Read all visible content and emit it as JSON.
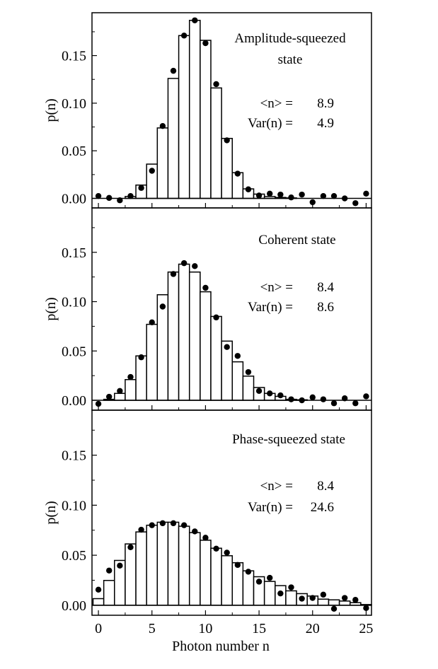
{
  "chart_data": {
    "type": "bar",
    "xlabel": "Photon number n",
    "ylabel": "p(n)",
    "xlim": [
      -0.6,
      25.5
    ],
    "ylim": [
      -0.01,
      0.195
    ],
    "x_ticks": [
      0,
      5,
      10,
      15,
      20,
      25
    ],
    "y_ticks": [
      0.0,
      0.05,
      0.1,
      0.15
    ],
    "y_tick_labels": [
      "0.00",
      "0.05",
      "0.10",
      "0.15"
    ],
    "x": [
      0,
      1,
      2,
      3,
      4,
      5,
      6,
      7,
      8,
      9,
      10,
      11,
      12,
      13,
      14,
      15,
      16,
      17,
      18,
      19,
      20,
      21,
      22,
      23,
      24,
      25
    ],
    "panels": [
      {
        "title_lines": [
          "Amplitude-squeezed",
          "state"
        ],
        "stats": [
          {
            "label": "<n> =",
            "value": "8.9"
          },
          {
            "label": "Var(n) =",
            "value": "4.9"
          }
        ],
        "bars": [
          0,
          0,
          0,
          0.002,
          0.014,
          0.036,
          0.074,
          0.126,
          0.171,
          0.187,
          0.166,
          0.116,
          0.063,
          0.027,
          0.01,
          0.0045,
          0.002,
          0.001,
          0.0005,
          0,
          0,
          0,
          0,
          0,
          0,
          0
        ],
        "points": [
          0.0025,
          0.0005,
          -0.002,
          0.0025,
          0.011,
          0.029,
          0.076,
          0.134,
          0.171,
          0.187,
          0.163,
          0.12,
          0.061,
          0.026,
          0.0095,
          0.003,
          0.005,
          0.004,
          0.001,
          0.004,
          -0.004,
          0.0025,
          0.0025,
          0,
          -0.005,
          0.005
        ]
      },
      {
        "title_lines": [
          "Coherent state"
        ],
        "stats": [
          {
            "label": "<n> =",
            "value": "8.4"
          },
          {
            "label": "Var(n) =",
            "value": "8.6"
          }
        ],
        "bars": [
          0,
          0.001,
          0.007,
          0.021,
          0.045,
          0.077,
          0.107,
          0.13,
          0.138,
          0.13,
          0.11,
          0.085,
          0.06,
          0.039,
          0.0245,
          0.013,
          0.007,
          0.004,
          0.001,
          0.0005,
          0,
          0,
          0,
          0,
          0,
          0
        ],
        "points": [
          -0.0036,
          0.0036,
          0.0095,
          0.0236,
          0.0436,
          0.079,
          0.095,
          0.128,
          0.139,
          0.136,
          0.114,
          0.084,
          0.054,
          0.045,
          0.0286,
          0.0095,
          0.007,
          0.005,
          0.001,
          0,
          0.003,
          0.001,
          -0.003,
          0.002,
          -0.003,
          0.004
        ]
      },
      {
        "title_lines": [
          "Phase-squeezed state"
        ],
        "stats": [
          {
            "label": "<n> =",
            "value": "8.4"
          },
          {
            "label": "Var(n) =",
            "value": "24.6"
          }
        ],
        "bars": [
          0.0066,
          0.0248,
          0.0448,
          0.0613,
          0.0733,
          0.08,
          0.083,
          0.083,
          0.079,
          0.0726,
          0.065,
          0.057,
          0.0495,
          0.0425,
          0.0344,
          0.0285,
          0.0238,
          0.0196,
          0.0144,
          0.0116,
          0.0092,
          0.0061,
          0.0054,
          0.0042,
          0.0026,
          0.0007
        ],
        "points": [
          0.0156,
          0.0347,
          0.0396,
          0.058,
          0.0755,
          0.08,
          0.082,
          0.082,
          0.08,
          0.0738,
          0.0675,
          0.0566,
          0.0526,
          0.0403,
          0.0335,
          0.0236,
          0.0274,
          0.0118,
          0.0179,
          0.0066,
          0.0073,
          0.0106,
          -0.0035,
          0.0073,
          0.0054,
          -0.0028
        ]
      }
    ]
  }
}
